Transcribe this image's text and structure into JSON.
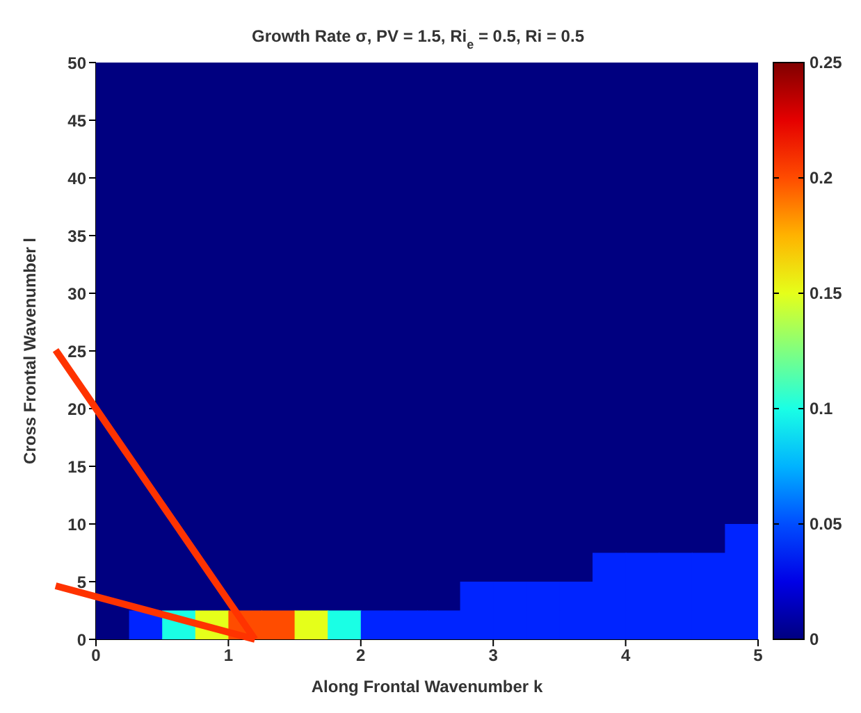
{
  "chart_data": {
    "type": "heatmap",
    "title": "Growth Rate σ, PV = 1.5, Ri$_{e}$ = 0.5, Ri = 0.5",
    "xlabel": "Along Frontal Wavenumber k",
    "ylabel": "Cross Frontal Wavenumber l",
    "xlim": [
      0,
      5
    ],
    "ylim": [
      0,
      50
    ],
    "xticks": [
      0,
      1,
      2,
      3,
      4,
      5
    ],
    "yticks": [
      0,
      5,
      10,
      15,
      20,
      25,
      30,
      35,
      40,
      45,
      50
    ],
    "clim": [
      0,
      0.25
    ],
    "cticks": [
      0,
      0.05,
      0.1,
      0.15,
      0.2,
      0.25
    ],
    "cells": [
      [
        0,
        0,
        0,
        0,
        0,
        0,
        0,
        0,
        0,
        0,
        0,
        0,
        0,
        0,
        0,
        0,
        0,
        0,
        0,
        0
      ],
      [
        0,
        0,
        0,
        0,
        0,
        0,
        0,
        0,
        0,
        0,
        0,
        0,
        0,
        0,
        0,
        0,
        0,
        0,
        0,
        0
      ],
      [
        0,
        0,
        0,
        0,
        0,
        0,
        0,
        0,
        0,
        0,
        0,
        0,
        0,
        0,
        0,
        0,
        0,
        0,
        0,
        0
      ],
      [
        0,
        0,
        0,
        0,
        0,
        0,
        0,
        0,
        0,
        0,
        0,
        0,
        0,
        0,
        0,
        0,
        0,
        0,
        0,
        0
      ],
      [
        0,
        0,
        0,
        0,
        0,
        0,
        0,
        0,
        0,
        0,
        0,
        0,
        0,
        0,
        0,
        0,
        0,
        0,
        0,
        0
      ],
      [
        0,
        0,
        0,
        0,
        0,
        0,
        0,
        0,
        0,
        0,
        0,
        0,
        0,
        0,
        0,
        0,
        0,
        0,
        0,
        0
      ],
      [
        0,
        0,
        0,
        0,
        0,
        0,
        0,
        0,
        0,
        0,
        0,
        0,
        0,
        0,
        0,
        0,
        0,
        0,
        0,
        0
      ],
      [
        0,
        0,
        0,
        0,
        0,
        0,
        0,
        0,
        0,
        0,
        0,
        0,
        0,
        0,
        0,
        0,
        0,
        0,
        0,
        0
      ],
      [
        0,
        0,
        0,
        0,
        0,
        0,
        0,
        0,
        0,
        0,
        0,
        0,
        0,
        0,
        0,
        0,
        0,
        0,
        0,
        0
      ],
      [
        0,
        0,
        0,
        0,
        0,
        0,
        0,
        0,
        0,
        0,
        0,
        0,
        0,
        0,
        0,
        0,
        0,
        0,
        0,
        0
      ],
      [
        0,
        0,
        0,
        0,
        0,
        0,
        0,
        0,
        0,
        0,
        0,
        0,
        0,
        0,
        0,
        0,
        0,
        0,
        0,
        0
      ],
      [
        0,
        0,
        0,
        0,
        0,
        0,
        0,
        0,
        0,
        0,
        0,
        0,
        0,
        0,
        0,
        0,
        0,
        0,
        0,
        0
      ],
      [
        0,
        0,
        0,
        0,
        0,
        0,
        0,
        0,
        0,
        0,
        0,
        0,
        0,
        0,
        0,
        0,
        0,
        0,
        0,
        0
      ],
      [
        0,
        0,
        0,
        0,
        0,
        0,
        0,
        0,
        0,
        0,
        0,
        0,
        0,
        0,
        0,
        0,
        0,
        0,
        0,
        0
      ],
      [
        0,
        0,
        0,
        0,
        0,
        0,
        0,
        0,
        0,
        0,
        0,
        0,
        0,
        0,
        0,
        0,
        0,
        0,
        0,
        0
      ],
      [
        0,
        0,
        0,
        0,
        0,
        0,
        0,
        0,
        0,
        0,
        0,
        0,
        0,
        0,
        0,
        0,
        0,
        0,
        0,
        0
      ],
      [
        0,
        0,
        0,
        0,
        0,
        0,
        0,
        0,
        0,
        0,
        0,
        0,
        0,
        0,
        0,
        0,
        0,
        0,
        0,
        0.04
      ],
      [
        0,
        0,
        0,
        0,
        0,
        0,
        0,
        0,
        0,
        0,
        0,
        0,
        0,
        0,
        0,
        0.04,
        0.04,
        0.04,
        0.04,
        0.04
      ],
      [
        0,
        0,
        0,
        0,
        0,
        0,
        0,
        0,
        0,
        0,
        0,
        0.04,
        0.04,
        0.04,
        0.04,
        0.04,
        0.04,
        0.04,
        0.04,
        0.04
      ],
      [
        0,
        0.04,
        0.1,
        0.15,
        0.2,
        0.2,
        0.15,
        0.1,
        0.04,
        0.04,
        0.04,
        0.04,
        0.04,
        0.04,
        0.04,
        0.04,
        0.04,
        0.04,
        0.04,
        0.04
      ]
    ]
  }
}
